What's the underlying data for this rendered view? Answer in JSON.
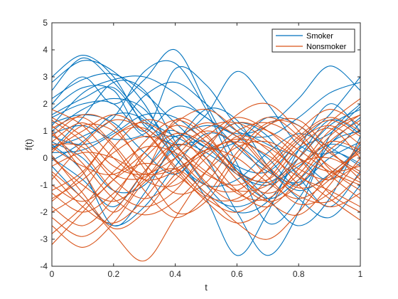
{
  "chart_data": {
    "type": "line",
    "title": "",
    "xlabel": "t",
    "ylabel": "f(t)",
    "xlim": [
      0,
      1
    ],
    "ylim": [
      -4,
      5
    ],
    "xticks": [
      "0",
      "0.2",
      "0.4",
      "0.6",
      "0.8",
      "1"
    ],
    "yticks": [
      "-4",
      "-3",
      "-2",
      "-1",
      "0",
      "1",
      "2",
      "3",
      "4",
      "5"
    ],
    "grid": false,
    "legend_position": "top-right",
    "sample_x": [
      0,
      0.1,
      0.2,
      0.3,
      0.4,
      0.5,
      0.6,
      0.7,
      0.8,
      0.9,
      1.0
    ],
    "series": [
      {
        "name": "Smoker",
        "color": "#0072BD",
        "curves": [
          [
            3.0,
            3.8,
            3.0,
            1.2,
            0.5,
            0.6,
            -0.4,
            -1.5,
            -2.5,
            -1.5,
            0.8
          ],
          [
            2.8,
            3.6,
            3.2,
            2.0,
            0.0,
            -1.0,
            -0.8,
            0.2,
            0.9,
            0.4,
            -0.3
          ],
          [
            2.5,
            3.7,
            2.8,
            1.5,
            0.8,
            0.2,
            -0.5,
            -0.9,
            0.0,
            1.2,
            1.8
          ],
          [
            2.2,
            2.9,
            3.1,
            2.4,
            1.3,
            0.4,
            0.6,
            1.5,
            1.2,
            0.2,
            -0.5
          ],
          [
            2.0,
            3.0,
            2.0,
            2.9,
            4.0,
            2.0,
            -0.2,
            -2.4,
            -1.5,
            0.5,
            1.0
          ],
          [
            1.8,
            2.6,
            2.5,
            1.0,
            3.3,
            2.7,
            1.2,
            0.5,
            0.0,
            -0.8,
            0.5
          ],
          [
            1.6,
            2.2,
            2.6,
            1.3,
            0.8,
            1.6,
            3.2,
            2.0,
            0.5,
            0.2,
            1.3
          ],
          [
            1.5,
            2.0,
            2.0,
            0.8,
            1.0,
            0.0,
            -2.0,
            -3.6,
            -2.0,
            0.8,
            2.0
          ],
          [
            1.3,
            1.6,
            1.3,
            0.2,
            -0.6,
            0.5,
            1.3,
            0.8,
            -0.7,
            -1.8,
            -0.5
          ],
          [
            1.2,
            2.4,
            2.9,
            3.0,
            2.4,
            1.5,
            0.9,
            1.2,
            2.2,
            3.4,
            2.5
          ],
          [
            1.0,
            1.8,
            2.2,
            1.8,
            0.2,
            -1.5,
            -3.6,
            -2.0,
            0.3,
            2.0,
            1.0
          ],
          [
            0.9,
            1.2,
            0.7,
            0.9,
            1.9,
            1.5,
            0.4,
            -0.5,
            -0.9,
            0.0,
            0.6
          ],
          [
            0.8,
            0.5,
            1.0,
            2.3,
            2.8,
            2.0,
            1.0,
            0.8,
            1.5,
            2.4,
            2.8
          ],
          [
            0.6,
            0.0,
            -1.2,
            -1.0,
            0.5,
            1.8,
            1.4,
            -0.3,
            -1.5,
            -2.2,
            -1.0
          ],
          [
            0.5,
            -0.5,
            -2.5,
            -1.3,
            0.6,
            1.2,
            0.8,
            0.0,
            -1.0,
            0.5,
            1.5
          ],
          [
            0.4,
            0.8,
            1.5,
            3.2,
            3.5,
            1.8,
            -0.5,
            -1.5,
            -0.8,
            0.2,
            -0.2
          ],
          [
            0.3,
            1.5,
            2.8,
            2.5,
            0.6,
            -1.0,
            -2.0,
            -1.6,
            0.0,
            1.4,
            0.9
          ],
          [
            0.2,
            0.3,
            0.9,
            1.6,
            1.5,
            0.6,
            -0.3,
            -0.5,
            0.6,
            1.6,
            3.0
          ],
          [
            0.0,
            -0.8,
            -1.8,
            -0.5,
            0.8,
            0.4,
            -0.6,
            -1.0,
            -0.3,
            0.5,
            0.2
          ],
          [
            -0.1,
            0.6,
            1.6,
            1.4,
            0.0,
            -1.3,
            -1.8,
            -1.2,
            0.3,
            0.9,
            1.9
          ],
          [
            -0.3,
            -1.5,
            -2.5,
            -1.8,
            -0.3,
            0.9,
            0.5,
            -0.4,
            -1.2,
            -0.6,
            0.4
          ]
        ]
      },
      {
        "name": "Nonsmoker",
        "color": "#D95319",
        "curves": [
          [
            0.5,
            0.4,
            -0.8,
            -1.5,
            -0.8,
            0.5,
            1.3,
            1.0,
            0.3,
            -0.5,
            -1.0
          ],
          [
            1.5,
            0.8,
            -0.3,
            -0.6,
            0.0,
            0.8,
            1.5,
            1.0,
            0.0,
            -1.3,
            -2.0
          ],
          [
            -1.2,
            -0.5,
            0.8,
            1.3,
            0.5,
            -0.9,
            -1.6,
            -0.8,
            0.6,
            1.2,
            0.5
          ],
          [
            -1.8,
            -2.5,
            -1.5,
            0.2,
            1.2,
            0.6,
            -0.8,
            -1.6,
            -1.0,
            0.3,
            1.0
          ],
          [
            1.0,
            -0.5,
            -2.0,
            -0.6,
            1.4,
            0.9,
            -0.5,
            -0.8,
            0.4,
            1.1,
            0.0
          ],
          [
            -2.2,
            -2.9,
            -2.0,
            -0.5,
            0.5,
            0.0,
            -1.2,
            -1.8,
            -0.8,
            0.6,
            1.4
          ],
          [
            0.2,
            1.2,
            1.0,
            -0.2,
            -1.3,
            -0.9,
            0.6,
            1.5,
            0.8,
            -0.6,
            -1.5
          ],
          [
            -0.5,
            -1.5,
            -2.8,
            -3.8,
            -2.2,
            -0.5,
            0.8,
            0.3,
            -1.0,
            -1.8,
            -1.3
          ],
          [
            1.8,
            1.2,
            0.0,
            -0.8,
            -0.5,
            0.2,
            0.7,
            0.4,
            -0.4,
            -0.8,
            -0.2
          ],
          [
            -1.5,
            -0.8,
            0.2,
            0.8,
            0.4,
            -0.5,
            -1.2,
            -1.0,
            0.0,
            1.3,
            2.2
          ],
          [
            0.8,
            1.6,
            1.2,
            -0.4,
            -2.0,
            -1.6,
            0.0,
            1.2,
            1.4,
            0.3,
            -0.8
          ],
          [
            -2.8,
            -1.8,
            -0.5,
            0.4,
            0.2,
            -0.6,
            -1.0,
            -0.3,
            0.8,
            1.5,
            1.0
          ],
          [
            0.0,
            -1.0,
            -1.6,
            -0.8,
            0.6,
            1.3,
            0.8,
            -0.4,
            -1.4,
            -1.6,
            -0.6
          ],
          [
            1.2,
            0.2,
            -1.2,
            -1.8,
            -1.2,
            0.3,
            1.6,
            2.0,
            1.0,
            -0.4,
            -1.2
          ],
          [
            -0.8,
            0.5,
            1.4,
            1.0,
            -0.3,
            -1.4,
            -1.5,
            -0.5,
            0.7,
            1.4,
            0.8
          ],
          [
            -1.3,
            -2.0,
            -1.3,
            0.0,
            0.9,
            0.5,
            -0.6,
            -1.3,
            -0.6,
            0.8,
            1.6
          ],
          [
            0.4,
            -0.3,
            -0.6,
            0.2,
            1.3,
            1.8,
            1.0,
            -0.3,
            -1.1,
            -0.7,
            0.3
          ],
          [
            -3.2,
            -2.0,
            -0.8,
            -0.2,
            -0.6,
            -1.5,
            -2.0,
            -1.2,
            -0.2,
            0.0,
            -0.6
          ],
          [
            0.6,
            1.3,
            0.4,
            -1.2,
            -2.2,
            -1.4,
            0.2,
            1.3,
            1.2,
            0.2,
            -0.5
          ],
          [
            -0.3,
            0.2,
            0.0,
            -0.6,
            -0.4,
            0.3,
            0.6,
            0.1,
            -0.7,
            -1.2,
            -1.8
          ],
          [
            1.4,
            0.6,
            -0.6,
            -0.7,
            0.3,
            1.0,
            0.5,
            -0.7,
            -1.7,
            -1.3,
            0.0
          ],
          [
            -1.0,
            -1.6,
            -0.8,
            0.6,
            1.4,
            0.8,
            -0.5,
            -1.6,
            -2.1,
            -1.0,
            0.6
          ],
          [
            -2.0,
            -1.2,
            0.4,
            1.4,
            1.0,
            -0.2,
            -1.3,
            -1.5,
            -0.4,
            1.0,
            1.6
          ],
          [
            0.9,
            -0.2,
            -1.5,
            -2.1,
            -1.6,
            -0.5,
            0.4,
            0.6,
            0.0,
            -0.5,
            -0.3
          ],
          [
            -0.6,
            -1.8,
            -2.4,
            -1.5,
            0.0,
            1.1,
            1.3,
            0.6,
            -0.6,
            -1.5,
            -2.3
          ],
          [
            1.1,
            1.5,
            0.5,
            -0.8,
            -1.0,
            0.0,
            1.0,
            1.3,
            0.7,
            -0.3,
            -0.9
          ],
          [
            -1.6,
            -0.6,
            0.8,
            1.1,
            0.1,
            -1.0,
            -1.2,
            -0.2,
            1.0,
            1.8,
            1.2
          ],
          [
            0.1,
            -1.3,
            -2.6,
            -2.0,
            -0.6,
            0.3,
            0.0,
            -0.9,
            -1.5,
            -0.8,
            0.4
          ],
          [
            -2.5,
            -3.3,
            -2.4,
            -0.9,
            -0.4,
            -1.3,
            -2.4,
            -3.0,
            -2.0,
            -0.6,
            0.2
          ],
          [
            0.3,
            1.0,
            1.6,
            1.0,
            -0.4,
            -1.6,
            -2.4,
            -1.8,
            -0.4,
            0.6,
            0.3
          ]
        ]
      }
    ]
  }
}
